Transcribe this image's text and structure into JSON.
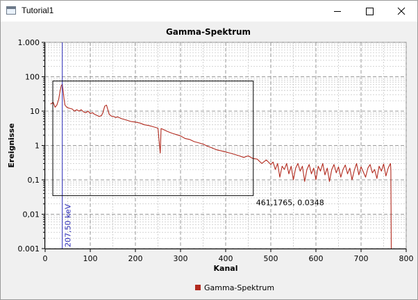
{
  "window": {
    "title": "Tutorial1",
    "controls": {
      "minimize": "minimize",
      "maximize": "maximize",
      "close": "close"
    }
  },
  "chart_data": {
    "type": "line",
    "title": "Gamma-Spektrum",
    "xlabel": "Kanal",
    "ylabel": "Ereignisse",
    "xlim": [
      0,
      800
    ],
    "ylim": [
      0.001,
      1000
    ],
    "yscale": "log",
    "grid": true,
    "legend_position": "bottom-center",
    "x_ticks": [
      {
        "value": 0,
        "label": "0"
      },
      {
        "value": 100,
        "label": "100"
      },
      {
        "value": 200,
        "label": "200"
      },
      {
        "value": 300,
        "label": "300"
      },
      {
        "value": 400,
        "label": "400"
      },
      {
        "value": 500,
        "label": "500"
      },
      {
        "value": 600,
        "label": "600"
      },
      {
        "value": 700,
        "label": "700"
      },
      {
        "value": 800,
        "label": "800"
      }
    ],
    "y_ticks": [
      {
        "value": 1000,
        "label": "1.000"
      },
      {
        "value": 100,
        "label": "100"
      },
      {
        "value": 10,
        "label": "10"
      },
      {
        "value": 1,
        "label": "1"
      },
      {
        "value": 0.1,
        "label": "0,1"
      },
      {
        "value": 0.01,
        "label": "0,01"
      },
      {
        "value": 0.001,
        "label": "0.001"
      }
    ],
    "series": [
      {
        "name": "Gamma-Spektrum",
        "color": "#b22a1e",
        "x": [
          12,
          18,
          22,
          26,
          30,
          33,
          36,
          38,
          40,
          42,
          44,
          46,
          48,
          50,
          55,
          60,
          65,
          70,
          75,
          80,
          85,
          90,
          95,
          100,
          105,
          110,
          115,
          120,
          125,
          128,
          132,
          136,
          139,
          142,
          145,
          148,
          152,
          156,
          160,
          170,
          180,
          190,
          200,
          210,
          220,
          230,
          240,
          250,
          255,
          257,
          260,
          270,
          280,
          290,
          300,
          310,
          320,
          330,
          340,
          350,
          360,
          370,
          380,
          390,
          400,
          410,
          420,
          430,
          440,
          450,
          460,
          470,
          480,
          490,
          500,
          505,
          510,
          515,
          520,
          525,
          530,
          535,
          540,
          545,
          550,
          555,
          560,
          565,
          570,
          575,
          580,
          585,
          590,
          595,
          600,
          605,
          610,
          615,
          620,
          625,
          630,
          635,
          640,
          645,
          650,
          655,
          660,
          665,
          670,
          675,
          680,
          685,
          690,
          695,
          700,
          705,
          710,
          715,
          720,
          725,
          730,
          735,
          740,
          745,
          750,
          755,
          760,
          765,
          766,
          767
        ],
        "values": [
          16,
          18,
          13,
          15,
          22,
          38,
          56,
          60,
          38,
          22,
          15,
          14,
          13,
          12.5,
          12,
          11.5,
          10,
          11,
          10,
          11,
          9.5,
          9,
          10,
          8.5,
          9,
          8,
          7.5,
          7,
          7.5,
          9,
          14,
          15,
          11,
          8,
          7.5,
          7,
          7,
          6.5,
          6.8,
          6,
          5.5,
          5,
          4.8,
          4.5,
          4,
          3.8,
          3.5,
          3.2,
          0.6,
          3.1,
          3,
          2.6,
          2.3,
          2.1,
          1.9,
          1.6,
          1.5,
          1.3,
          1.2,
          1.1,
          0.95,
          0.85,
          0.75,
          0.7,
          0.65,
          0.6,
          0.55,
          0.5,
          0.45,
          0.5,
          0.42,
          0.4,
          0.3,
          0.38,
          0.28,
          0.33,
          0.2,
          0.3,
          0.12,
          0.25,
          0.2,
          0.3,
          0.15,
          0.25,
          0.1,
          0.22,
          0.3,
          0.18,
          0.25,
          0.09,
          0.2,
          0.28,
          0.15,
          0.22,
          0.1,
          0.25,
          0.18,
          0.3,
          0.14,
          0.22,
          0.09,
          0.2,
          0.28,
          0.16,
          0.24,
          0.12,
          0.2,
          0.27,
          0.15,
          0.22,
          0.1,
          0.19,
          0.3,
          0.14,
          0.24,
          0.17,
          0.12,
          0.22,
          0.28,
          0.16,
          0.2,
          0.11,
          0.25,
          0.18,
          0.29,
          0.13,
          0.22,
          0.3,
          0.2,
          0.001
        ]
      }
    ],
    "marker": {
      "x": 38,
      "label": "207,50 keV",
      "color": "#2a2ab8"
    },
    "selection_rect": {
      "x0": 17,
      "x1": 461.1765,
      "y0": 0.0348,
      "y1": 75
    },
    "annotation": {
      "x": 461.1765,
      "y": 0.0348,
      "text": "461,1765, 0.0348"
    }
  }
}
